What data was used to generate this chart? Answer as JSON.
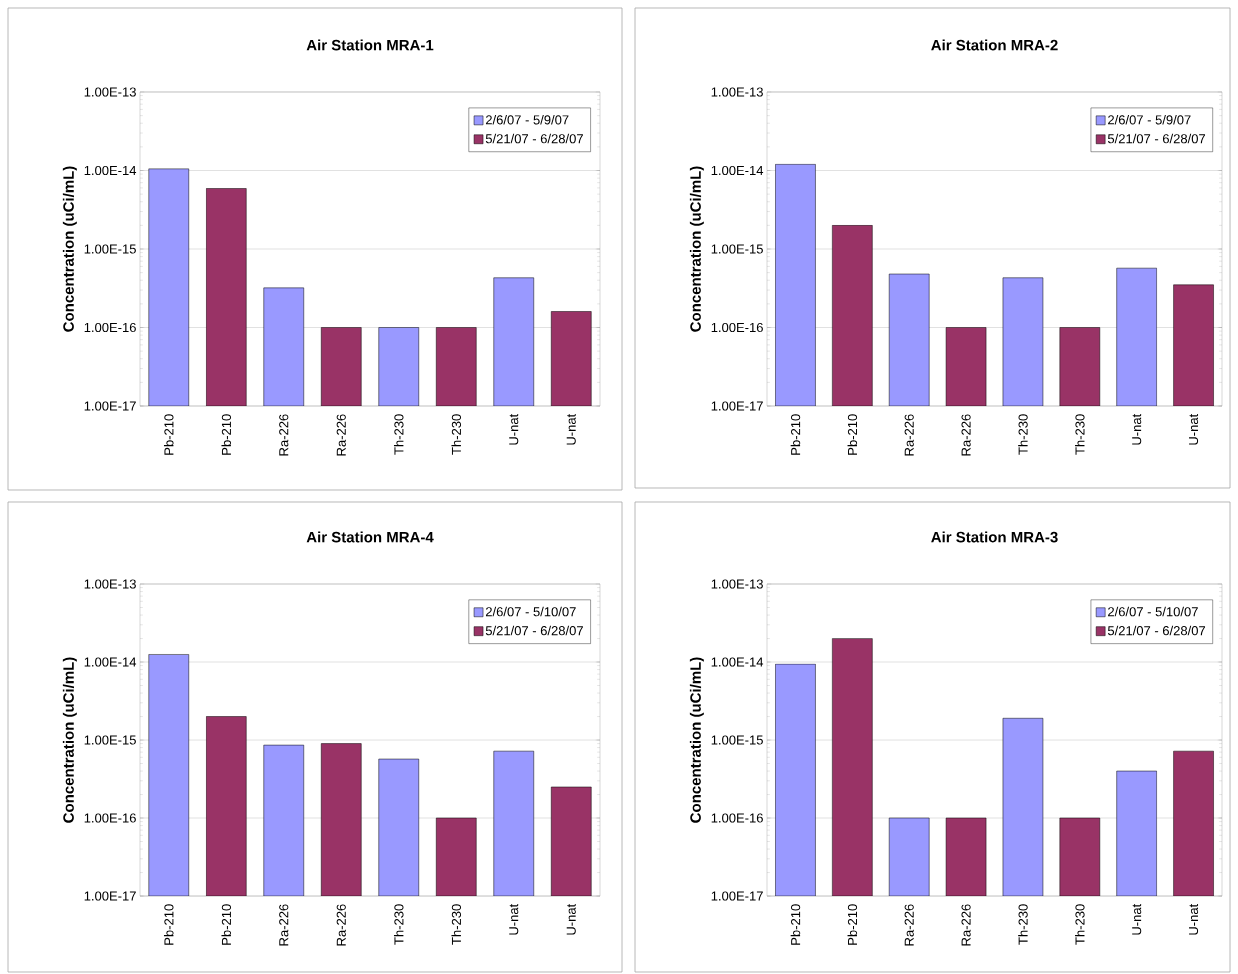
{
  "chart_data": [
    {
      "type": "bar",
      "title": "Air Station MRA-1",
      "ylabel": "Concentration (uCi/mL)",
      "log": true,
      "grid": "y",
      "legend": "top right",
      "categories": [
        "Pb-210",
        "Pb-210",
        "Ra-226",
        "Ra-226",
        "Th-230",
        "Th-230",
        "U-nat",
        "U-nat"
      ],
      "ylim": [
        1e-17,
        1e-13
      ],
      "yticks": [
        {
          "value": 1e-17,
          "label": "1.00E-17"
        },
        {
          "value": 1e-16,
          "label": "1.00E-16"
        },
        {
          "value": 1e-15,
          "label": "1.00E-15"
        },
        {
          "value": 1e-14,
          "label": "1.00E-14"
        },
        {
          "value": 1e-13,
          "label": "1.00E-13"
        }
      ],
      "series": [
        {
          "name": "2/6/07 - 5/9/07",
          "color": "#9999ff",
          "values": [
            1.05e-14,
            null,
            3.2e-16,
            null,
            1e-16,
            null,
            4.3e-16,
            null
          ]
        },
        {
          "name": "5/21/07 - 6/28/07",
          "color": "#993366",
          "values": [
            null,
            5.9e-15,
            null,
            1e-16,
            null,
            1e-16,
            null,
            1.6e-16
          ]
        }
      ]
    },
    {
      "type": "bar",
      "title": "Air Station MRA-2",
      "ylabel": "Concentration (uCi/mL)",
      "log": true,
      "grid": "y",
      "legend": "top right",
      "categories": [
        "Pb-210",
        "Pb-210",
        "Ra-226",
        "Ra-226",
        "Th-230",
        "Th-230",
        "U-nat",
        "U-nat"
      ],
      "ylim": [
        1e-17,
        1e-13
      ],
      "yticks": [
        {
          "value": 1e-17,
          "label": "1.00E-17"
        },
        {
          "value": 1e-16,
          "label": "1.00E-16"
        },
        {
          "value": 1e-15,
          "label": "1.00E-15"
        },
        {
          "value": 1e-14,
          "label": "1.00E-14"
        },
        {
          "value": 1e-13,
          "label": "1.00E-13"
        }
      ],
      "series": [
        {
          "name": "2/6/07 - 5/9/07",
          "color": "#9999ff",
          "values": [
            1.2e-14,
            null,
            4.8e-16,
            null,
            4.3e-16,
            null,
            5.7e-16,
            null
          ]
        },
        {
          "name": "5/21/07 - 6/28/07",
          "color": "#993366",
          "values": [
            null,
            2e-15,
            null,
            1e-16,
            null,
            1e-16,
            null,
            3.5e-16
          ]
        }
      ]
    },
    {
      "type": "bar",
      "title": "Air Station MRA-4",
      "ylabel": "Concentration (uCi/mL)",
      "log": true,
      "grid": "y",
      "legend": "top right",
      "categories": [
        "Pb-210",
        "Pb-210",
        "Ra-226",
        "Ra-226",
        "Th-230",
        "Th-230",
        "U-nat",
        "U-nat"
      ],
      "ylim": [
        1e-17,
        1e-13
      ],
      "yticks": [
        {
          "value": 1e-17,
          "label": "1.00E-17"
        },
        {
          "value": 1e-16,
          "label": "1.00E-16"
        },
        {
          "value": 1e-15,
          "label": "1.00E-15"
        },
        {
          "value": 1e-14,
          "label": "1.00E-14"
        },
        {
          "value": 1e-13,
          "label": "1.00E-13"
        }
      ],
      "series": [
        {
          "name": "2/6/07 - 5/10/07",
          "color": "#9999ff",
          "values": [
            1.25e-14,
            null,
            8.6e-16,
            null,
            5.7e-16,
            null,
            7.2e-16,
            null
          ]
        },
        {
          "name": "5/21/07 - 6/28/07",
          "color": "#993366",
          "values": [
            null,
            2e-15,
            null,
            9e-16,
            null,
            1e-16,
            null,
            2.5e-16
          ]
        }
      ]
    },
    {
      "type": "bar",
      "title": "Air Station MRA-3",
      "ylabel": "Concentration (uCi/mL)",
      "log": true,
      "grid": "y",
      "legend": "top right",
      "categories": [
        "Pb-210",
        "Pb-210",
        "Ra-226",
        "Ra-226",
        "Th-230",
        "Th-230",
        "U-nat",
        "U-nat"
      ],
      "ylim": [
        1e-17,
        1e-13
      ],
      "yticks": [
        {
          "value": 1e-17,
          "label": "1.00E-17"
        },
        {
          "value": 1e-16,
          "label": "1.00E-16"
        },
        {
          "value": 1e-15,
          "label": "1.00E-15"
        },
        {
          "value": 1e-14,
          "label": "1.00E-14"
        },
        {
          "value": 1e-13,
          "label": "1.00E-13"
        }
      ],
      "series": [
        {
          "name": "2/6/07 - 5/10/07",
          "color": "#9999ff",
          "values": [
            9.4e-15,
            null,
            1e-16,
            null,
            1.9e-15,
            null,
            4e-16,
            null
          ]
        },
        {
          "name": "5/21/07 - 6/28/07",
          "color": "#993366",
          "values": [
            null,
            2e-14,
            null,
            1e-16,
            null,
            1e-16,
            null,
            7.2e-16
          ]
        }
      ]
    }
  ]
}
